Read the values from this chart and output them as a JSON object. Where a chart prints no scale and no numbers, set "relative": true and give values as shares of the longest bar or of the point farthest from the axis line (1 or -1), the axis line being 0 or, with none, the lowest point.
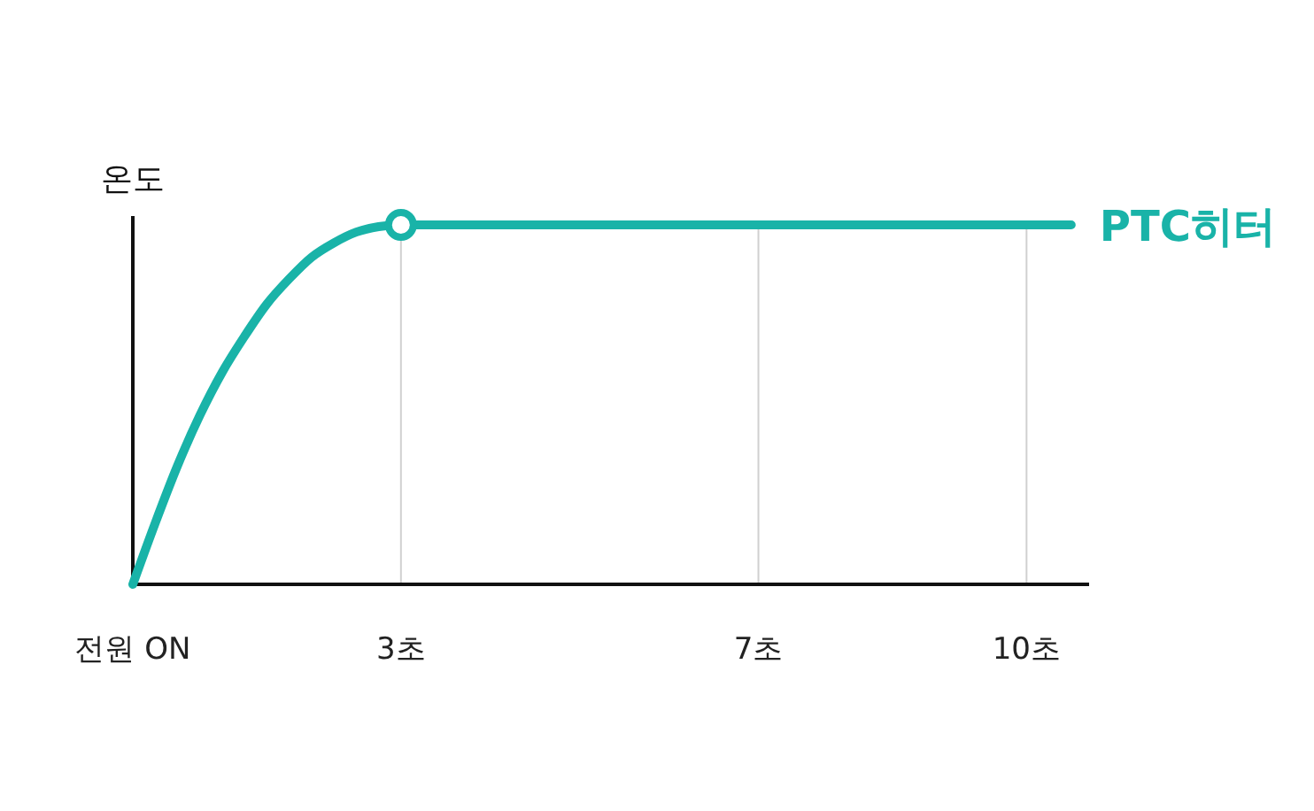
{
  "chart_data": {
    "type": "line",
    "relative": true,
    "ylabel": "온도",
    "x": [
      0,
      0.25,
      0.5,
      0.75,
      1,
      1.25,
      1.5,
      1.75,
      2,
      2.25,
      2.5,
      2.75,
      3,
      10.5
    ],
    "xlim": [
      0,
      10.7
    ],
    "xticks": [
      {
        "value": 0,
        "label": "전원 ON"
      },
      {
        "value": 3,
        "label": "3초"
      },
      {
        "value": 7,
        "label": "7초"
      },
      {
        "value": 10,
        "label": "10초"
      }
    ],
    "grid": "x",
    "line_style": "solid",
    "series": [
      {
        "name": "PTC히터",
        "color": "#19b3a8",
        "values": [
          0,
          0.17,
          0.33,
          0.47,
          0.59,
          0.69,
          0.78,
          0.85,
          0.91,
          0.95,
          0.98,
          0.995,
          1,
          1
        ]
      },
      {
        "type": "scatter",
        "marker": "circle",
        "color": "#19b3a8",
        "x": [
          3
        ],
        "values": [
          1
        ]
      }
    ]
  }
}
